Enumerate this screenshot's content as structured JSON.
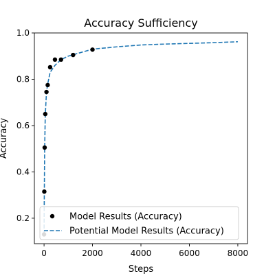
{
  "chart_data": {
    "type": "scatter",
    "title": "Accuracy Sufficiency",
    "xlabel": "Steps",
    "ylabel": "Accuracy",
    "xlim": [
      -400,
      8400
    ],
    "ylim": [
      0.09,
      1.0
    ],
    "xticks": [
      0,
      2000,
      4000,
      6000,
      8000
    ],
    "yticks": [
      0.2,
      0.4,
      0.6,
      0.8,
      1.0
    ],
    "xtick_labels": [
      "0",
      "2000",
      "4000",
      "6000",
      "8000"
    ],
    "ytick_labels": [
      "0.2",
      "0.4",
      "0.6",
      "0.8",
      "1.0"
    ],
    "grid": false,
    "legend_position": "lower-right",
    "series": [
      {
        "name": "Model Results (Accuracy)",
        "kind": "scatter",
        "color": "#000000",
        "x": [
          0,
          10,
          25,
          50,
          100,
          150,
          250,
          450,
          700,
          1200,
          2000
        ],
        "y": [
          0.13,
          0.315,
          0.505,
          0.65,
          0.745,
          0.775,
          0.852,
          0.885,
          0.885,
          0.905,
          0.928
        ]
      },
      {
        "name": "Potential Model Results (Accuracy)",
        "kind": "line",
        "style": "dashed",
        "color": "#1f77b4",
        "x": [
          0,
          10,
          25,
          50,
          100,
          150,
          250,
          450,
          700,
          1000,
          1500,
          2000,
          3000,
          4000,
          5000,
          6000,
          7000,
          8000
        ],
        "y": [
          0.13,
          0.3,
          0.5,
          0.645,
          0.745,
          0.78,
          0.83,
          0.86,
          0.885,
          0.9,
          0.915,
          0.93,
          0.94,
          0.948,
          0.952,
          0.955,
          0.958,
          0.962
        ]
      }
    ]
  }
}
